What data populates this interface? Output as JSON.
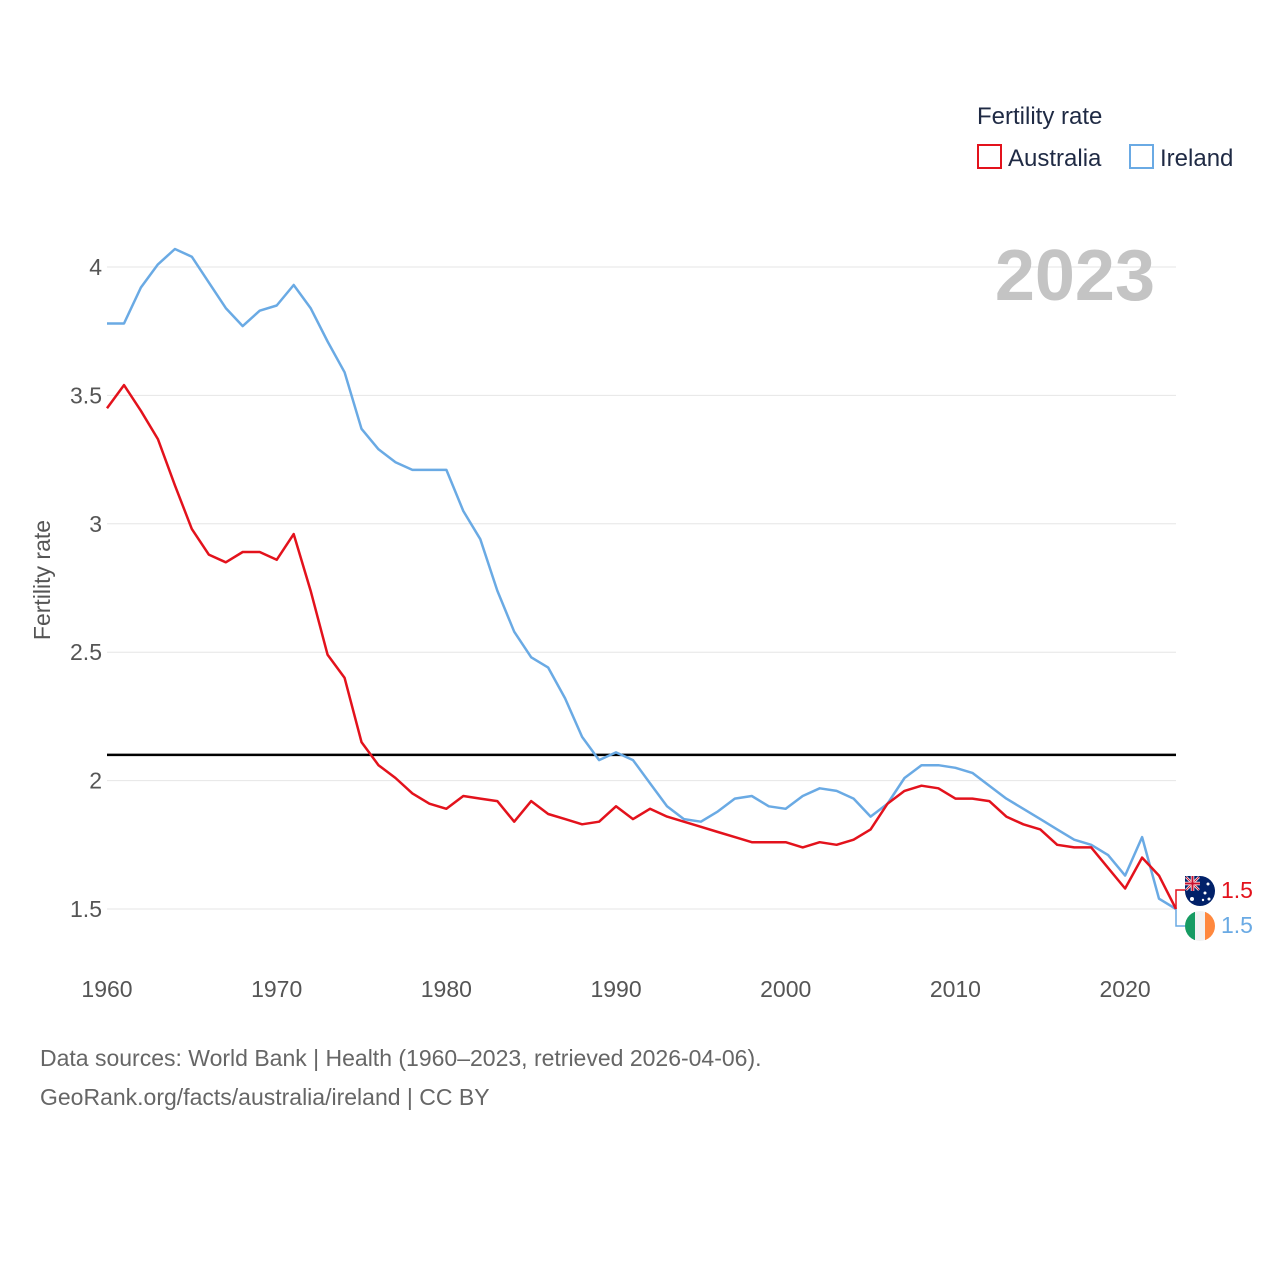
{
  "legend": {
    "title": "Fertility rate",
    "items": [
      {
        "name": "Australia",
        "color": "#e3121c"
      },
      {
        "name": "Ireland",
        "color": "#6aaae4"
      }
    ]
  },
  "year_label": "2023",
  "footer": {
    "line1": "Data sources: World Bank | Health (1960–2023, retrieved 2026-04-06).",
    "line2": "GeoRank.org/facts/australia/ireland | CC BY"
  },
  "chart_data": {
    "type": "line",
    "title": "Fertility rate",
    "xlabel": "",
    "ylabel": "Fertility rate",
    "xlim": [
      1960,
      2023
    ],
    "ylim": [
      1.5,
      4
    ],
    "xticks": [
      1960,
      1970,
      1980,
      1990,
      2000,
      2010,
      2020
    ],
    "yticks": [
      1.5,
      2,
      2.5,
      3,
      3.5,
      4
    ],
    "ytick_labels": [
      "1.5",
      "2",
      "2.5",
      "3",
      "3.5",
      "4"
    ],
    "reference_line": {
      "y": 2.1,
      "color": "#000000"
    },
    "x": [
      1960,
      1961,
      1962,
      1963,
      1964,
      1965,
      1966,
      1967,
      1968,
      1969,
      1970,
      1971,
      1972,
      1973,
      1974,
      1975,
      1976,
      1977,
      1978,
      1979,
      1980,
      1981,
      1982,
      1983,
      1984,
      1985,
      1986,
      1987,
      1988,
      1989,
      1990,
      1991,
      1992,
      1993,
      1994,
      1995,
      1996,
      1997,
      1998,
      1999,
      2000,
      2001,
      2002,
      2003,
      2004,
      2005,
      2006,
      2007,
      2008,
      2009,
      2010,
      2011,
      2012,
      2013,
      2014,
      2015,
      2016,
      2017,
      2018,
      2019,
      2020,
      2021,
      2022,
      2023
    ],
    "series": [
      {
        "name": "Australia",
        "color": "#e3121c",
        "end_label": "1.5",
        "values": [
          3.45,
          3.54,
          3.44,
          3.33,
          3.15,
          2.98,
          2.88,
          2.85,
          2.89,
          2.89,
          2.86,
          2.96,
          2.74,
          2.49,
          2.4,
          2.15,
          2.06,
          2.01,
          1.95,
          1.91,
          1.89,
          1.94,
          1.93,
          1.92,
          1.84,
          1.92,
          1.87,
          1.85,
          1.83,
          1.84,
          1.9,
          1.85,
          1.89,
          1.86,
          1.84,
          1.82,
          1.8,
          1.78,
          1.76,
          1.76,
          1.76,
          1.74,
          1.76,
          1.75,
          1.77,
          1.81,
          1.91,
          1.96,
          1.98,
          1.97,
          1.93,
          1.93,
          1.92,
          1.86,
          1.83,
          1.81,
          1.75,
          1.74,
          1.74,
          1.66,
          1.58,
          1.7,
          1.63,
          1.5
        ]
      },
      {
        "name": "Ireland",
        "color": "#6aaae4",
        "end_label": "1.5",
        "values": [
          3.78,
          3.78,
          3.92,
          4.01,
          4.07,
          4.04,
          3.94,
          3.84,
          3.77,
          3.83,
          3.85,
          3.93,
          3.84,
          3.71,
          3.59,
          3.37,
          3.29,
          3.24,
          3.21,
          3.21,
          3.21,
          3.05,
          2.94,
          2.74,
          2.58,
          2.48,
          2.44,
          2.32,
          2.17,
          2.08,
          2.11,
          2.08,
          1.99,
          1.9,
          1.85,
          1.84,
          1.88,
          1.93,
          1.94,
          1.9,
          1.89,
          1.94,
          1.97,
          1.96,
          1.93,
          1.86,
          1.91,
          2.01,
          2.06,
          2.06,
          2.05,
          2.03,
          1.98,
          1.93,
          1.89,
          1.85,
          1.81,
          1.77,
          1.75,
          1.71,
          1.63,
          1.78,
          1.54,
          1.5
        ]
      }
    ]
  }
}
